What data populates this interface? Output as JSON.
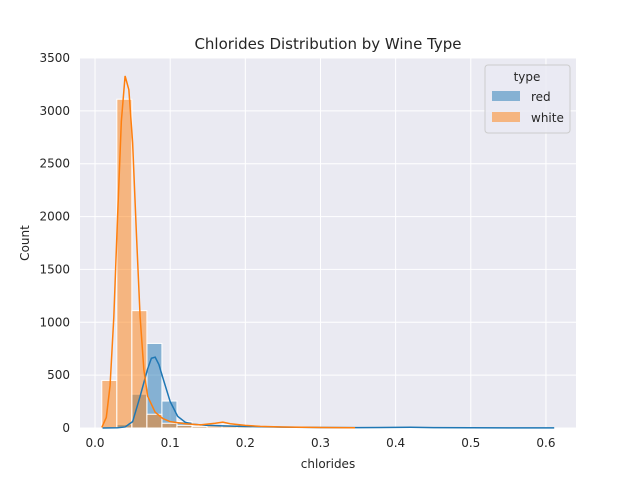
{
  "chart_data": {
    "type": "histogram",
    "title": "Chlorides Distribution by Wine Type",
    "xlabel": "chlorides",
    "ylabel": "Count",
    "xlim": [
      -0.02,
      0.64
    ],
    "ylim": [
      0,
      3500
    ],
    "xticks": [
      0.0,
      0.1,
      0.2,
      0.3,
      0.4,
      0.5,
      0.6
    ],
    "xtick_labels": [
      "0.0",
      "0.1",
      "0.2",
      "0.3",
      "0.4",
      "0.5",
      "0.6"
    ],
    "yticks": [
      0,
      500,
      1000,
      1500,
      2000,
      2500,
      3000,
      3500
    ],
    "ytick_labels": [
      "0",
      "500",
      "1000",
      "1500",
      "2000",
      "2500",
      "3000",
      "3500"
    ],
    "grid": true,
    "legend": {
      "title": "type",
      "placement": "top-right"
    },
    "series": [
      {
        "name": "red",
        "color": "#1f77b4",
        "bins": [
          {
            "x0": 0.029,
            "x1": 0.049,
            "count": 35
          },
          {
            "x0": 0.049,
            "x1": 0.069,
            "count": 320
          },
          {
            "x0": 0.069,
            "x1": 0.089,
            "count": 800
          },
          {
            "x0": 0.089,
            "x1": 0.109,
            "count": 255
          },
          {
            "x0": 0.109,
            "x1": 0.129,
            "count": 60
          },
          {
            "x0": 0.129,
            "x1": 0.149,
            "count": 20
          },
          {
            "x0": 0.149,
            "x1": 0.169,
            "count": 10
          },
          {
            "x0": 0.169,
            "x1": 0.189,
            "count": 8
          },
          {
            "x0": 0.189,
            "x1": 0.209,
            "count": 6
          },
          {
            "x0": 0.209,
            "x1": 0.229,
            "count": 4
          },
          {
            "x0": 0.229,
            "x1": 0.249,
            "count": 3
          },
          {
            "x0": 0.249,
            "x1": 0.269,
            "count": 2
          },
          {
            "x0": 0.269,
            "x1": 0.289,
            "count": 2
          },
          {
            "x0": 0.329,
            "x1": 0.349,
            "count": 2
          },
          {
            "x0": 0.409,
            "x1": 0.429,
            "count": 3
          },
          {
            "x0": 0.449,
            "x1": 0.469,
            "count": 1
          },
          {
            "x0": 0.589,
            "x1": 0.609,
            "count": 1
          }
        ],
        "kde": [
          [
            0.01,
            0
          ],
          [
            0.03,
            2
          ],
          [
            0.04,
            10
          ],
          [
            0.05,
            60
          ],
          [
            0.06,
            300
          ],
          [
            0.07,
            560
          ],
          [
            0.075,
            660
          ],
          [
            0.08,
            670
          ],
          [
            0.085,
            600
          ],
          [
            0.09,
            480
          ],
          [
            0.1,
            250
          ],
          [
            0.11,
            110
          ],
          [
            0.12,
            55
          ],
          [
            0.13,
            35
          ],
          [
            0.15,
            25
          ],
          [
            0.17,
            20
          ],
          [
            0.2,
            14
          ],
          [
            0.25,
            8
          ],
          [
            0.3,
            5
          ],
          [
            0.35,
            4
          ],
          [
            0.4,
            6
          ],
          [
            0.42,
            7
          ],
          [
            0.45,
            4
          ],
          [
            0.5,
            2
          ],
          [
            0.55,
            1
          ],
          [
            0.611,
            1
          ]
        ]
      },
      {
        "name": "white",
        "color": "#ff7f0e",
        "bins": [
          {
            "x0": 0.009,
            "x1": 0.029,
            "count": 450
          },
          {
            "x0": 0.029,
            "x1": 0.049,
            "count": 3110
          },
          {
            "x0": 0.049,
            "x1": 0.069,
            "count": 1110
          },
          {
            "x0": 0.069,
            "x1": 0.089,
            "count": 130
          },
          {
            "x0": 0.089,
            "x1": 0.109,
            "count": 45
          },
          {
            "x0": 0.109,
            "x1": 0.129,
            "count": 25
          },
          {
            "x0": 0.129,
            "x1": 0.149,
            "count": 15
          },
          {
            "x0": 0.149,
            "x1": 0.169,
            "count": 20
          },
          {
            "x0": 0.169,
            "x1": 0.189,
            "count": 30
          },
          {
            "x0": 0.189,
            "x1": 0.209,
            "count": 15
          },
          {
            "x0": 0.209,
            "x1": 0.229,
            "count": 10
          },
          {
            "x0": 0.229,
            "x1": 0.249,
            "count": 8
          },
          {
            "x0": 0.249,
            "x1": 0.269,
            "count": 5
          },
          {
            "x0": 0.269,
            "x1": 0.289,
            "count": 4
          },
          {
            "x0": 0.289,
            "x1": 0.309,
            "count": 3
          },
          {
            "x0": 0.329,
            "x1": 0.349,
            "count": 2
          }
        ],
        "kde": [
          [
            0.009,
            5
          ],
          [
            0.015,
            100
          ],
          [
            0.02,
            400
          ],
          [
            0.025,
            1050
          ],
          [
            0.03,
            2000
          ],
          [
            0.035,
            2900
          ],
          [
            0.04,
            3330
          ],
          [
            0.045,
            3200
          ],
          [
            0.05,
            2700
          ],
          [
            0.055,
            1850
          ],
          [
            0.06,
            1050
          ],
          [
            0.065,
            550
          ],
          [
            0.07,
            300
          ],
          [
            0.08,
            150
          ],
          [
            0.09,
            90
          ],
          [
            0.1,
            60
          ],
          [
            0.12,
            40
          ],
          [
            0.14,
            30
          ],
          [
            0.16,
            45
          ],
          [
            0.17,
            55
          ],
          [
            0.18,
            40
          ],
          [
            0.2,
            25
          ],
          [
            0.22,
            15
          ],
          [
            0.25,
            10
          ],
          [
            0.3,
            5
          ],
          [
            0.346,
            2
          ]
        ]
      }
    ]
  }
}
